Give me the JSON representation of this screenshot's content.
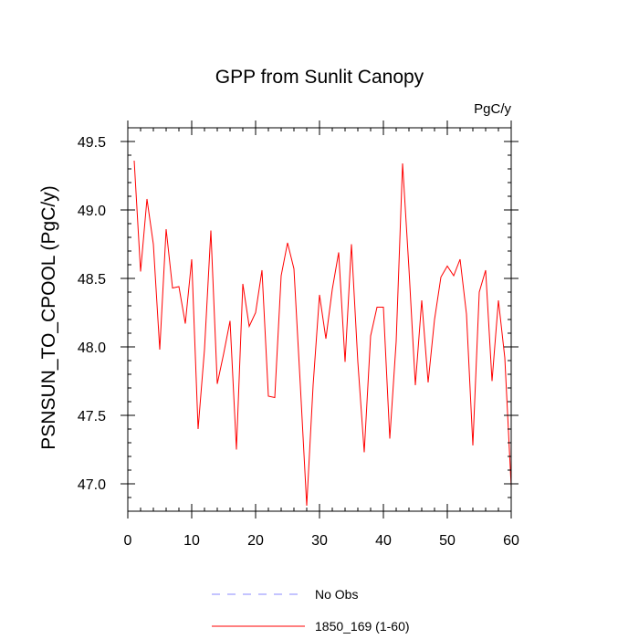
{
  "chart_data": {
    "type": "line",
    "title": "GPP from Sunlit Canopy",
    "units_label": "PgC/y",
    "xlabel": "",
    "ylabel": "PSNSUN_TO_CPOOL  (PgC/y)",
    "xlim": [
      0,
      60
    ],
    "ylim": [
      46.8,
      49.6
    ],
    "xticks": [
      0,
      10,
      20,
      30,
      40,
      50,
      60
    ],
    "xtick_labels": [
      "0",
      "10",
      "20",
      "30",
      "40",
      "50",
      "60"
    ],
    "yticks": [
      47.0,
      47.5,
      48.0,
      48.5,
      49.0,
      49.5
    ],
    "ytick_labels": [
      "47.0",
      "47.5",
      "48.0",
      "48.5",
      "49.0",
      "49.5"
    ],
    "grid": false,
    "legend_position": "bottom-center",
    "series": [
      {
        "name": "No Obs",
        "color": "#8888ff",
        "dash": "dashed",
        "x": [],
        "values": []
      },
      {
        "name": "1850_169 (1-60)",
        "color": "#ff0000",
        "dash": "solid",
        "x": [
          1,
          2,
          3,
          4,
          5,
          6,
          7,
          8,
          9,
          10,
          11,
          12,
          13,
          14,
          15,
          16,
          17,
          18,
          19,
          20,
          21,
          22,
          23,
          24,
          25,
          26,
          27,
          28,
          29,
          30,
          31,
          32,
          33,
          34,
          35,
          36,
          37,
          38,
          39,
          40,
          41,
          42,
          43,
          44,
          45,
          46,
          47,
          48,
          49,
          50,
          51,
          52,
          53,
          54,
          55,
          56,
          57,
          58,
          59,
          60
        ],
        "values": [
          49.36,
          48.55,
          49.08,
          48.75,
          47.98,
          48.86,
          48.43,
          48.44,
          48.17,
          48.64,
          47.4,
          47.98,
          48.85,
          47.73,
          47.95,
          48.19,
          47.25,
          48.46,
          48.15,
          48.25,
          48.56,
          47.64,
          47.63,
          48.52,
          48.76,
          48.57,
          47.72,
          46.84,
          47.72,
          48.38,
          48.06,
          48.42,
          48.69,
          47.89,
          48.75,
          47.89,
          47.23,
          48.08,
          48.29,
          48.29,
          47.33,
          48.04,
          49.34,
          48.57,
          47.72,
          48.34,
          47.74,
          48.2,
          48.51,
          48.59,
          48.52,
          48.64,
          48.24,
          47.28,
          48.4,
          48.56,
          47.75,
          48.34,
          47.92,
          46.98
        ]
      }
    ]
  }
}
